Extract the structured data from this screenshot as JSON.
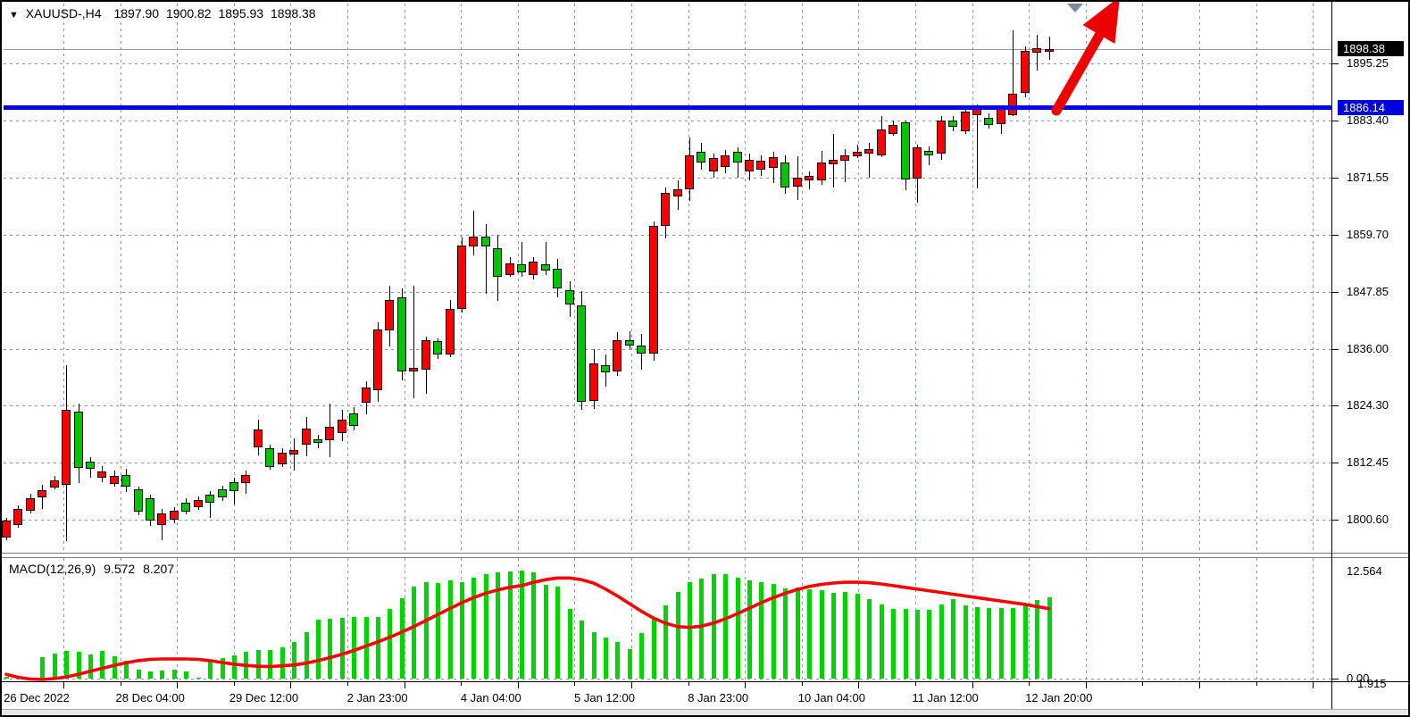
{
  "window": {
    "marker_glyph": "▼",
    "symbol_period": "XAUUSD-,H4",
    "ohlc_line": {
      "open": "1897.90",
      "high": "1900.82",
      "low": "1895.93",
      "close": "1898.38"
    }
  },
  "indicator_label": {
    "name": "MACD(12,26,9)",
    "macd_value": "9.572",
    "signal_value": "8.207"
  },
  "price_axis": {
    "current_badge": "1898.38",
    "hline_badge": "1886.14",
    "labels": [
      "1895.25",
      "1883.40",
      "1871.55",
      "1859.70",
      "1847.85",
      "1836.00",
      "1824.30",
      "1812.45",
      "1800.60"
    ],
    "macd_top": "12.564",
    "macd_zero": "0.00",
    "macd_low": "1.915"
  },
  "time_axis": {
    "labels": [
      "26 Dec 2022",
      "28 Dec 04:00",
      "29 Dec 12:00",
      "2 Jan 23:00",
      "4 Jan 04:00",
      "5 Jan 12:00",
      "8 Jan 23:00",
      "10 Jan 04:00",
      "11 Jan 12:00",
      "12 Jan 20:00"
    ]
  },
  "colors": {
    "bull_candle": "#ff0000",
    "bear_candle": "#00c400",
    "macd_histogram": "#00d400",
    "macd_signal": "#ff0000",
    "hline": "#0000f0",
    "arrow": "#ee0000",
    "grid": "#8694a8",
    "current_price_line": "#9a9a9a",
    "current_badge_bg": "#000000",
    "hline_badge_bg": "#0000e0"
  },
  "chart_data": {
    "type": "candlestick_with_macd",
    "title": "XAUUSD- H4",
    "symbol": "XAUUSD",
    "timeframe": "H4",
    "current_price": 1898.38,
    "support_line_price": 1886.14,
    "y_ticks": [
      1895.25,
      1883.4,
      1871.55,
      1859.7,
      1847.85,
      1836.0,
      1824.3,
      1812.45,
      1800.6
    ],
    "x_tick_labels": [
      "26 Dec 2022",
      "28 Dec 04:00",
      "29 Dec 12:00",
      "2 Jan 23:00",
      "4 Jan 04:00",
      "5 Jan 12:00",
      "8 Jan 23:00",
      "10 Jan 04:00",
      "11 Jan 12:00",
      "12 Jan 20:00"
    ],
    "note": "bull bars drawn red, bear bars drawn green; candles as [open,high,low,close]",
    "candles": [
      [
        1796.75,
        1800.85,
        1796.2,
        1800.3
      ],
      [
        1799.35,
        1803.5,
        1798.8,
        1802.75
      ],
      [
        1802.35,
        1805.9,
        1801.8,
        1805.0
      ],
      [
        1805.2,
        1807.75,
        1802.75,
        1806.65
      ],
      [
        1807.25,
        1809.65,
        1806.85,
        1808.7
      ],
      [
        1807.75,
        1832.65,
        1796.2,
        1823.3
      ],
      [
        1822.9,
        1824.75,
        1808.3,
        1811.15
      ],
      [
        1812.65,
        1813.55,
        1809.3,
        1811.15
      ],
      [
        1809.3,
        1811.7,
        1808.3,
        1810.6
      ],
      [
        1808.0,
        1810.75,
        1807.45,
        1809.65
      ],
      [
        1809.8,
        1811.15,
        1806.3,
        1807.45
      ],
      [
        1806.85,
        1807.45,
        1801.45,
        1802.2
      ],
      [
        1805.0,
        1805.75,
        1799.2,
        1800.3
      ],
      [
        1799.35,
        1802.75,
        1796.2,
        1801.8
      ],
      [
        1800.5,
        1803.1,
        1799.75,
        1802.35
      ],
      [
        1804.05,
        1805.0,
        1801.6,
        1802.2
      ],
      [
        1803.1,
        1805.35,
        1802.55,
        1804.6
      ],
      [
        1805.75,
        1806.5,
        1800.85,
        1804.05
      ],
      [
        1806.85,
        1807.6,
        1804.4,
        1805.2
      ],
      [
        1808.3,
        1809.3,
        1803.65,
        1806.5
      ],
      [
        1808.15,
        1810.75,
        1805.9,
        1809.8
      ],
      [
        1815.4,
        1821.4,
        1813.95,
        1819.2
      ],
      [
        1815.4,
        1816.2,
        1810.95,
        1811.5
      ],
      [
        1812.1,
        1815.4,
        1811.5,
        1814.5
      ],
      [
        1814.1,
        1817.5,
        1810.75,
        1815.05
      ],
      [
        1816.2,
        1821.8,
        1813.55,
        1819.55
      ],
      [
        1817.3,
        1818.25,
        1815.4,
        1816.55
      ],
      [
        1817.1,
        1824.6,
        1813.4,
        1819.9
      ],
      [
        1818.6,
        1823.3,
        1816.75,
        1821.4
      ],
      [
        1822.7,
        1823.85,
        1819.0,
        1820.1
      ],
      [
        1824.75,
        1829.25,
        1822.35,
        1827.95
      ],
      [
        1827.4,
        1841.6,
        1825.15,
        1840.1
      ],
      [
        1839.75,
        1849.1,
        1836.4,
        1846.1
      ],
      [
        1846.65,
        1848.5,
        1829.45,
        1831.3
      ],
      [
        1831.3,
        1849.1,
        1825.7,
        1832.1
      ],
      [
        1831.7,
        1838.6,
        1826.65,
        1837.85
      ],
      [
        1837.7,
        1838.25,
        1833.95,
        1834.9
      ],
      [
        1834.9,
        1846.1,
        1834.15,
        1844.4
      ],
      [
        1844.4,
        1859.15,
        1843.5,
        1857.5
      ],
      [
        1857.3,
        1864.8,
        1855.6,
        1859.35
      ],
      [
        1859.35,
        1862.0,
        1847.6,
        1857.3
      ],
      [
        1856.9,
        1859.75,
        1846.1,
        1850.95
      ],
      [
        1851.3,
        1855.05,
        1850.95,
        1853.75
      ],
      [
        1853.55,
        1858.2,
        1850.95,
        1851.9
      ],
      [
        1851.3,
        1855.05,
        1850.4,
        1854.1
      ],
      [
        1853.55,
        1858.2,
        1851.3,
        1852.25
      ],
      [
        1852.6,
        1854.7,
        1846.65,
        1848.5
      ],
      [
        1848.15,
        1850.0,
        1842.55,
        1845.15
      ],
      [
        1845.15,
        1847.95,
        1823.3,
        1825.15
      ],
      [
        1825.15,
        1836.0,
        1823.65,
        1833.0
      ],
      [
        1832.65,
        1834.9,
        1828.3,
        1831.15
      ],
      [
        1831.3,
        1839.55,
        1830.4,
        1837.85
      ],
      [
        1837.85,
        1839.75,
        1836.0,
        1836.75
      ],
      [
        1836.75,
        1839.2,
        1831.7,
        1835.1
      ],
      [
        1835.1,
        1862.55,
        1833.6,
        1861.6
      ],
      [
        1861.6,
        1869.45,
        1858.8,
        1868.5
      ],
      [
        1867.6,
        1870.95,
        1864.8,
        1869.1
      ],
      [
        1869.1,
        1879.9,
        1866.65,
        1876.2
      ],
      [
        1876.9,
        1878.8,
        1873.2,
        1874.7
      ],
      [
        1872.8,
        1876.55,
        1871.5,
        1875.6
      ],
      [
        1873.75,
        1877.3,
        1872.45,
        1876.2
      ],
      [
        1876.9,
        1877.85,
        1871.5,
        1874.7
      ],
      [
        1872.8,
        1876.55,
        1870.95,
        1875.25
      ],
      [
        1873.2,
        1876.2,
        1871.9,
        1875.05
      ],
      [
        1873.55,
        1876.9,
        1870.4,
        1875.8
      ],
      [
        1874.7,
        1876.2,
        1868.15,
        1869.45
      ],
      [
        1869.65,
        1876.0,
        1866.85,
        1871.5
      ],
      [
        1870.95,
        1872.8,
        1869.1,
        1871.9
      ],
      [
        1870.95,
        1877.1,
        1870.0,
        1874.7
      ],
      [
        1874.3,
        1880.65,
        1869.45,
        1875.25
      ],
      [
        1875.05,
        1877.5,
        1870.6,
        1876.2
      ],
      [
        1876.0,
        1878.4,
        1875.6,
        1876.9
      ],
      [
        1876.55,
        1878.8,
        1871.5,
        1877.5
      ],
      [
        1876.2,
        1884.4,
        1875.8,
        1881.6
      ],
      [
        1880.65,
        1883.5,
        1880.3,
        1882.55
      ],
      [
        1883.1,
        1883.5,
        1869.1,
        1871.3
      ],
      [
        1871.3,
        1878.4,
        1866.3,
        1877.85
      ],
      [
        1877.1,
        1878.05,
        1874.1,
        1876.2
      ],
      [
        1876.55,
        1884.4,
        1875.25,
        1883.5
      ],
      [
        1883.5,
        1884.4,
        1881.2,
        1882.2
      ],
      [
        1881.2,
        1885.9,
        1880.65,
        1885.35
      ],
      [
        1884.6,
        1886.8,
        1869.45,
        1885.9
      ],
      [
        1884.0,
        1885.0,
        1881.8,
        1882.55
      ],
      [
        1882.7,
        1886.3,
        1880.65,
        1885.9
      ],
      [
        1884.6,
        1902.15,
        1884.4,
        1889.1
      ],
      [
        1889.1,
        1898.8,
        1888.15,
        1897.85
      ],
      [
        1897.5,
        1901.2,
        1893.7,
        1898.4
      ],
      [
        1897.9,
        1900.82,
        1895.93,
        1898.38
      ]
    ],
    "macd": {
      "params": [
        12,
        26,
        9
      ],
      "scale_top": 12.564,
      "scale_zero": 0.0,
      "scale_low_label": 1.915,
      "current_macd": 9.572,
      "current_signal": 8.207,
      "histogram": [
        0.2,
        0.35,
        0.05,
        2.5,
        2.9,
        3.2,
        3.1,
        2.85,
        3.2,
        2.6,
        2.1,
        1.05,
        0.85,
        0.95,
        1.05,
        0.8,
        0.1,
        2.1,
        2.4,
        2.75,
        3.1,
        3.3,
        3.4,
        3.7,
        4.3,
        5.4,
        6.9,
        7.0,
        7.1,
        7.2,
        7.2,
        7.2,
        8.2,
        9.4,
        10.8,
        11.3,
        11.2,
        11.5,
        11.3,
        11.8,
        12.2,
        12.5,
        12.6,
        12.7,
        12.5,
        11.0,
        10.8,
        8.2,
        6.8,
        5.4,
        4.8,
        4.3,
        3.5,
        5.3,
        7.1,
        8.6,
        10.2,
        11.3,
        11.7,
        12.2,
        12.3,
        11.8,
        11.5,
        11.3,
        11.05,
        10.6,
        10.7,
        10.5,
        10.4,
        10.1,
        10.2,
        10.0,
        9.3,
        8.65,
        8.2,
        8.2,
        8.1,
        8.1,
        8.65,
        9.3,
        8.55,
        8.4,
        8.3,
        8.25,
        8.3,
        8.8,
        9.2,
        9.572
      ],
      "signal": [
        0.5,
        0.15,
        -0.05,
        -0.1,
        0.0,
        0.2,
        0.5,
        0.85,
        1.2,
        1.55,
        1.85,
        2.1,
        2.25,
        2.3,
        2.3,
        2.3,
        2.25,
        2.1,
        1.9,
        1.7,
        1.55,
        1.45,
        1.4,
        1.5,
        1.6,
        1.8,
        2.1,
        2.45,
        2.85,
        3.3,
        3.8,
        4.3,
        4.85,
        5.45,
        6.1,
        6.8,
        7.5,
        8.2,
        8.9,
        9.5,
        10.0,
        10.4,
        10.7,
        10.9,
        11.3,
        11.6,
        11.8,
        11.8,
        11.6,
        11.2,
        10.5,
        9.7,
        8.8,
        7.9,
        7.1,
        6.5,
        6.1,
        6.0,
        6.15,
        6.5,
        7.0,
        7.6,
        8.25,
        8.9,
        9.5,
        10.0,
        10.45,
        10.8,
        11.05,
        11.2,
        11.3,
        11.3,
        11.25,
        11.1,
        10.9,
        10.7,
        10.5,
        10.3,
        10.1,
        9.9,
        9.7,
        9.5,
        9.3,
        9.1,
        8.9,
        8.7,
        8.45,
        8.207
      ]
    },
    "annotations": [
      {
        "kind": "horizontal_line",
        "price": 1886.14,
        "color": "#0000f0"
      },
      {
        "kind": "arrow_up_right",
        "color": "#ee0000"
      },
      {
        "kind": "triangle_marker_down",
        "color": "#7d8b9b"
      }
    ]
  }
}
